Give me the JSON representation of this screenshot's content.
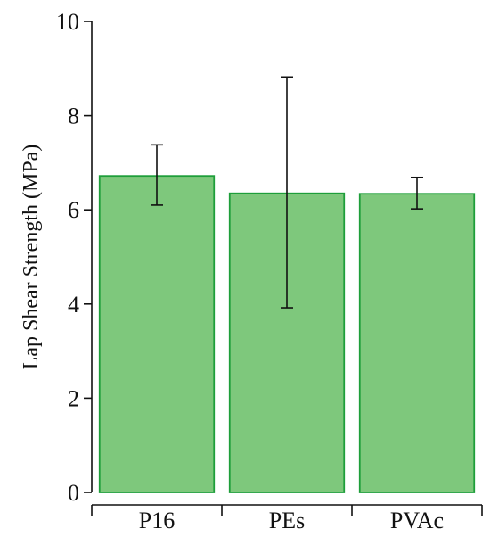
{
  "chart_data": {
    "type": "bar",
    "title": "",
    "xlabel": "",
    "ylabel": "Lap Shear Strength (MPa)",
    "ylim": [
      0,
      10
    ],
    "yticks": [
      0,
      2,
      4,
      6,
      8,
      10
    ],
    "categories": [
      "P16",
      "PEs",
      "PVAc"
    ],
    "values": [
      6.72,
      6.35,
      6.34
    ],
    "error_low": [
      6.1,
      3.92,
      6.02
    ],
    "error_high": [
      7.38,
      8.82,
      6.69
    ],
    "grid": false,
    "colors": {
      "bar_fill": "#7ec87c",
      "bar_stroke": "#1e9e3a",
      "axis": "#111111"
    }
  }
}
